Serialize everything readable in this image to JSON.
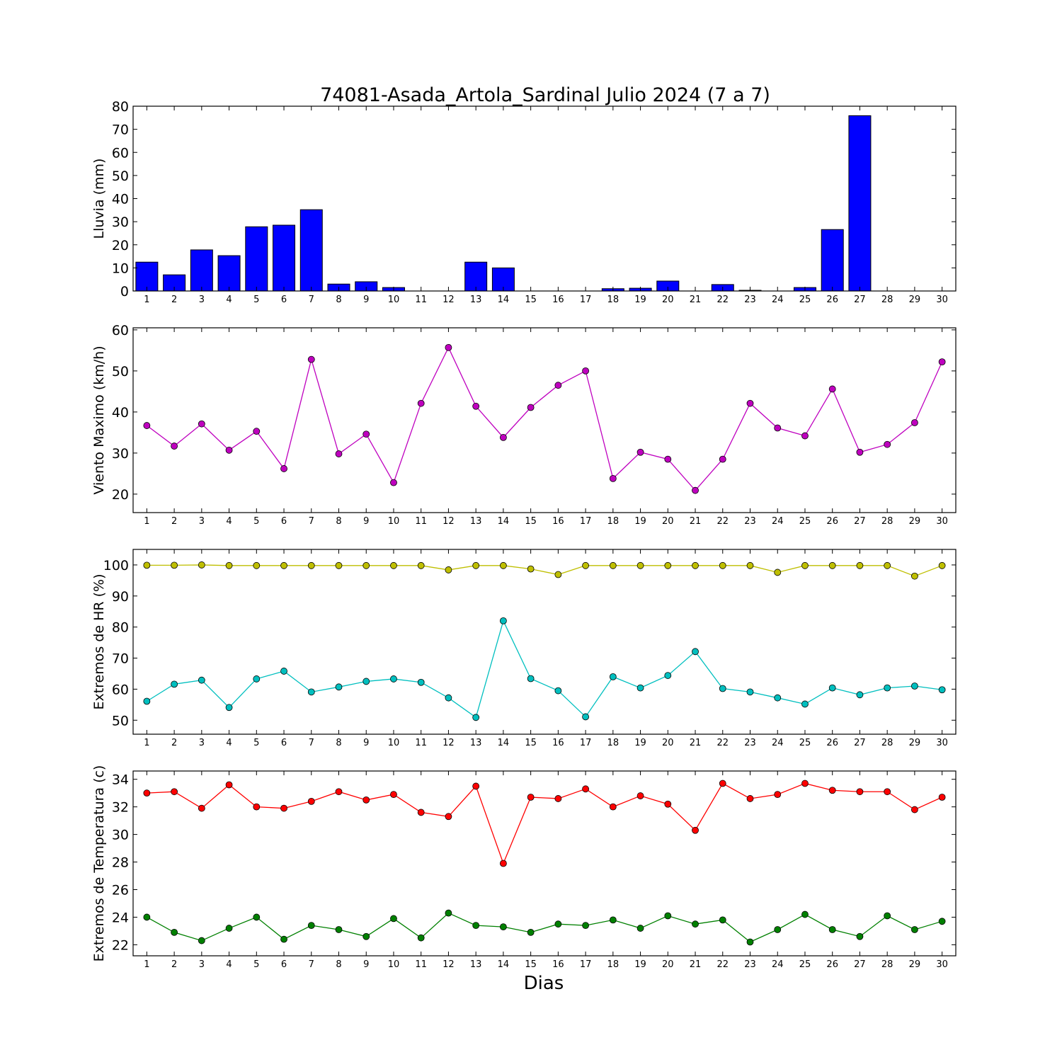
{
  "chart_data": {
    "title": "74081-Asada_Artola_Sardinal Julio 2024  (7 a 7)",
    "xlabel": "Dias",
    "days": [
      1,
      2,
      3,
      4,
      5,
      6,
      7,
      8,
      9,
      10,
      11,
      12,
      13,
      14,
      15,
      16,
      17,
      18,
      19,
      20,
      21,
      22,
      23,
      24,
      25,
      26,
      27,
      28,
      29,
      30
    ],
    "panels": [
      {
        "type": "bar",
        "ylabel": "Lluvia (mm)",
        "ylim": [
          0,
          80
        ],
        "yticks": [
          0,
          10,
          20,
          30,
          40,
          50,
          60,
          70,
          80
        ],
        "series": [
          {
            "color": "#0000ff",
            "values": [
              12.5,
              7.0,
              17.8,
              15.3,
              27.8,
              28.5,
              35.2,
              3.0,
              4.0,
              1.5,
              0.0,
              0.0,
              12.5,
              10.0,
              0.0,
              0.0,
              0.0,
              1.0,
              1.2,
              4.3,
              0.0,
              2.8,
              0.3,
              0.0,
              1.5,
              26.6,
              75.9,
              0.0,
              0.0,
              0.0
            ]
          }
        ]
      },
      {
        "type": "line",
        "ylabel": "Viento Maximo (km/h)",
        "ylim": [
          15.5,
          60.5
        ],
        "yticks": [
          20,
          30,
          40,
          50,
          60
        ],
        "series": [
          {
            "color": "#bf00bf",
            "values": [
              36.7,
              31.7,
              37.1,
              30.7,
              35.3,
              26.2,
              52.8,
              29.8,
              34.6,
              22.8,
              42.1,
              55.7,
              41.4,
              33.8,
              41.1,
              46.5,
              50.0,
              23.8,
              30.2,
              28.5,
              20.9,
              28.5,
              42.1,
              36.1,
              34.2,
              45.6,
              30.2,
              32.1,
              37.4,
              52.2
            ]
          }
        ]
      },
      {
        "type": "line",
        "ylabel": "Extremos de HR (%)",
        "ylim": [
          45.5,
          105
        ],
        "yticks": [
          50,
          60,
          70,
          80,
          90,
          100
        ],
        "series": [
          {
            "color": "#bfbf00",
            "values": [
              99.9,
              99.9,
              100.0,
              99.8,
              99.8,
              99.8,
              99.8,
              99.8,
              99.8,
              99.8,
              99.8,
              98.4,
              99.8,
              99.8,
              98.7,
              96.9,
              99.8,
              99.8,
              99.8,
              99.8,
              99.8,
              99.8,
              99.8,
              97.6,
              99.8,
              99.8,
              99.8,
              99.8,
              96.4,
              99.8
            ]
          },
          {
            "color": "#00bfbf",
            "values": [
              56.1,
              61.6,
              62.9,
              54.1,
              63.3,
              65.8,
              59.1,
              60.7,
              62.5,
              63.3,
              62.2,
              57.2,
              50.9,
              82.0,
              63.4,
              59.5,
              51.1,
              64.0,
              60.4,
              64.4,
              72.1,
              60.2,
              59.1,
              57.2,
              55.2,
              60.4,
              58.2,
              60.4,
              61.0,
              59.8
            ]
          }
        ]
      },
      {
        "type": "line",
        "ylabel": "Extremos de Temperatura (c)",
        "ylim": [
          21.2,
          34.6
        ],
        "yticks": [
          22,
          24,
          26,
          28,
          30,
          32,
          34
        ],
        "series": [
          {
            "color": "#ff0000",
            "values": [
              33.0,
              33.1,
              31.9,
              33.6,
              32.0,
              31.9,
              32.4,
              33.1,
              32.5,
              32.9,
              31.6,
              31.3,
              33.5,
              27.9,
              32.7,
              32.6,
              33.3,
              32.0,
              32.8,
              32.2,
              30.3,
              33.7,
              32.6,
              32.9,
              33.7,
              33.2,
              33.1,
              33.1,
              31.8,
              32.7
            ]
          },
          {
            "color": "#008000",
            "values": [
              24.0,
              22.9,
              22.3,
              23.2,
              24.0,
              22.4,
              23.4,
              23.1,
              22.6,
              23.9,
              22.5,
              24.3,
              23.4,
              23.3,
              22.9,
              23.5,
              23.4,
              23.8,
              23.2,
              24.1,
              23.5,
              23.8,
              22.2,
              23.1,
              24.2,
              23.1,
              22.6,
              24.1,
              23.1,
              23.7
            ]
          }
        ]
      }
    ]
  }
}
